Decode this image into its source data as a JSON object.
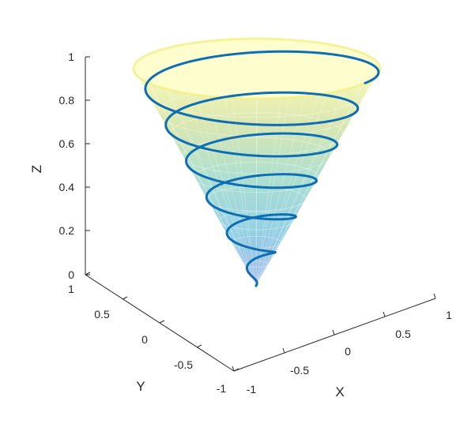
{
  "chart_data": {
    "type": "3d-surface-line",
    "title": "",
    "xlabel": "X",
    "ylabel": "Y",
    "zlabel": "Z",
    "xlim": [
      -1,
      1
    ],
    "ylim": [
      -1,
      1
    ],
    "zlim": [
      0,
      1
    ],
    "x_ticks": [
      "-1",
      "-0.5",
      "0",
      "0.5",
      "1"
    ],
    "y_ticks": [
      "-1",
      "-0.5",
      "0",
      "0.5",
      "1"
    ],
    "z_ticks": [
      "0",
      "0.2",
      "0.4",
      "0.6",
      "0.8",
      "1"
    ],
    "grid": false,
    "surface": {
      "shape": "cone",
      "apex": [
        0,
        0,
        0
      ],
      "top_radius": 1,
      "top_z": 1,
      "colormap": [
        "#3b6fd0",
        "#2ba1c9",
        "#5cc0a0",
        "#b7cf63",
        "#f9f871"
      ],
      "opacity": 0.35
    },
    "series": [
      {
        "type": "helix",
        "turns": 6,
        "radius_equals_z": true,
        "z_range": [
          0,
          1
        ],
        "color": "#0e6eb3",
        "line_width": 3
      }
    ]
  }
}
